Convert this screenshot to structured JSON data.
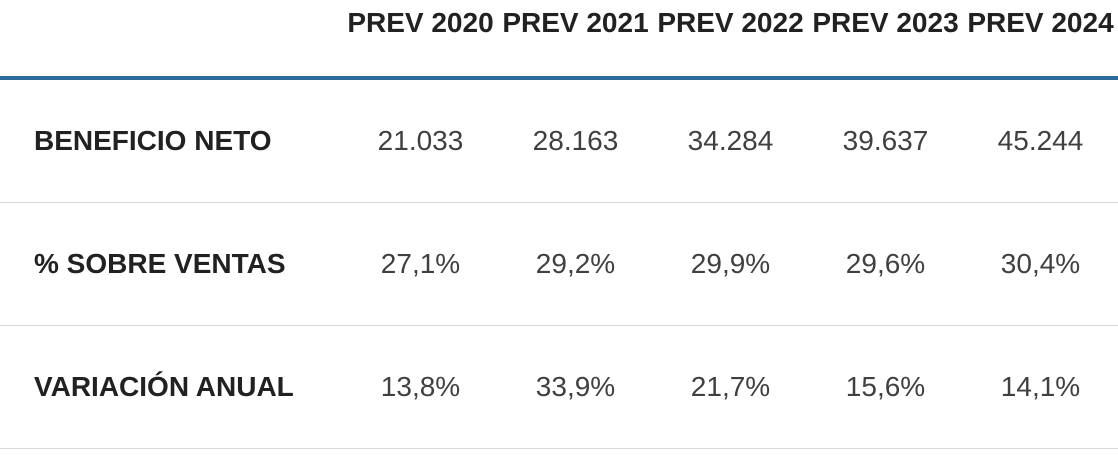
{
  "table": {
    "columns": [
      "PREV 2020",
      "PREV 2021",
      "PREV 2022",
      "PREV 2023",
      "PREV 2024"
    ],
    "rows": [
      {
        "label": "BENEFICIO NETO",
        "values": [
          "21.033",
          "28.163",
          "34.284",
          "39.637",
          "45.244"
        ]
      },
      {
        "label": "% SOBRE VENTAS",
        "values": [
          "27,1%",
          "29,2%",
          "29,9%",
          "29,6%",
          "30,4%"
        ]
      },
      {
        "label": "VARIACIÓN ANUAL",
        "values": [
          "13,8%",
          "33,9%",
          "21,7%",
          "15,6%",
          "14,1%"
        ]
      }
    ]
  },
  "colors": {
    "accent_line": "#2B6A99",
    "row_divider": "#D9D9D9",
    "header_text": "#212121",
    "value_text": "#404040"
  },
  "chart_data": {
    "type": "table",
    "categories": [
      "PREV 2020",
      "PREV 2021",
      "PREV 2022",
      "PREV 2023",
      "PREV 2024"
    ],
    "series": [
      {
        "name": "BENEFICIO NETO",
        "values": [
          21033,
          28163,
          34284,
          39637,
          45244
        ]
      },
      {
        "name": "% SOBRE VENTAS",
        "values": [
          27.1,
          29.2,
          29.9,
          29.6,
          30.4
        ],
        "unit": "%"
      },
      {
        "name": "VARIACIÓN ANUAL",
        "values": [
          13.8,
          33.9,
          21.7,
          15.6,
          14.1
        ],
        "unit": "%"
      }
    ],
    "legend_position": "none",
    "grid": "horizontal-dividers"
  }
}
